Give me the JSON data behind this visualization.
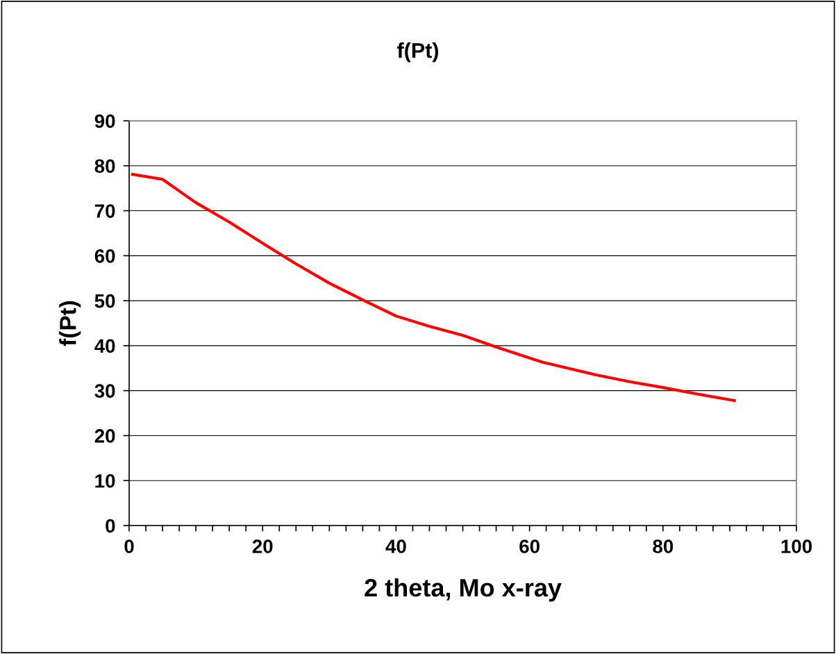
{
  "chart_data": {
    "type": "line",
    "title": "f(Pt)",
    "xlabel": "2 theta, Mo x-ray",
    "ylabel": "f(Pt)",
    "x": [
      0.5,
      5,
      10,
      15,
      20,
      25,
      30,
      35,
      40,
      45,
      50,
      55,
      62,
      70,
      75,
      80,
      85,
      90.7
    ],
    "series": [
      {
        "color": "#ff0000",
        "values": [
          78.1,
          77.0,
          71.8,
          67.5,
          62.8,
          58.2,
          53.9,
          50.2,
          46.6,
          44.3,
          42.3,
          39.7,
          36.3,
          33.5,
          32.0,
          30.7,
          29.3,
          27.8
        ]
      }
    ],
    "xlim": [
      0,
      100
    ],
    "ylim": [
      0,
      90
    ],
    "xticks": [
      0,
      {
        "value": 2.5,
        "label": null
      },
      {
        "value": 5,
        "label": null
      },
      {
        "value": 7.5,
        "label": null
      },
      {
        "value": 10,
        "label": null
      },
      {
        "value": 12.5,
        "label": null
      },
      {
        "value": 15,
        "label": null
      },
      {
        "value": 17.5,
        "label": null
      },
      20,
      {
        "value": 22.5,
        "label": null
      },
      {
        "value": 25,
        "label": null
      },
      {
        "value": 27.5,
        "label": null
      },
      {
        "value": 30,
        "label": null
      },
      {
        "value": 32.5,
        "label": null
      },
      {
        "value": 35,
        "label": null
      },
      {
        "value": 37.5,
        "label": null
      },
      40,
      {
        "value": 42.5,
        "label": null
      },
      {
        "value": 45,
        "label": null
      },
      {
        "value": 47.5,
        "label": null
      },
      {
        "value": 50,
        "label": null
      },
      {
        "value": 52.5,
        "label": null
      },
      {
        "value": 55,
        "label": null
      },
      {
        "value": 57.5,
        "label": null
      },
      60,
      {
        "value": 62.5,
        "label": null
      },
      {
        "value": 65,
        "label": null
      },
      {
        "value": 67.5,
        "label": null
      },
      {
        "value": 70,
        "label": null
      },
      {
        "value": 72.5,
        "label": null
      },
      {
        "value": 75,
        "label": null
      },
      {
        "value": 77.5,
        "label": null
      },
      80,
      {
        "value": 82.5,
        "label": null
      },
      {
        "value": 85,
        "label": null
      },
      {
        "value": 87.5,
        "label": null
      },
      {
        "value": 90,
        "label": null
      },
      {
        "value": 92.5,
        "label": null
      },
      {
        "value": 95,
        "label": null
      },
      {
        "value": 97.5,
        "label": null
      },
      100
    ],
    "yticks": [
      0,
      10,
      20,
      30,
      40,
      50,
      60,
      70,
      80,
      90
    ],
    "grid": "y",
    "marker": "none",
    "line_style": "solid"
  }
}
